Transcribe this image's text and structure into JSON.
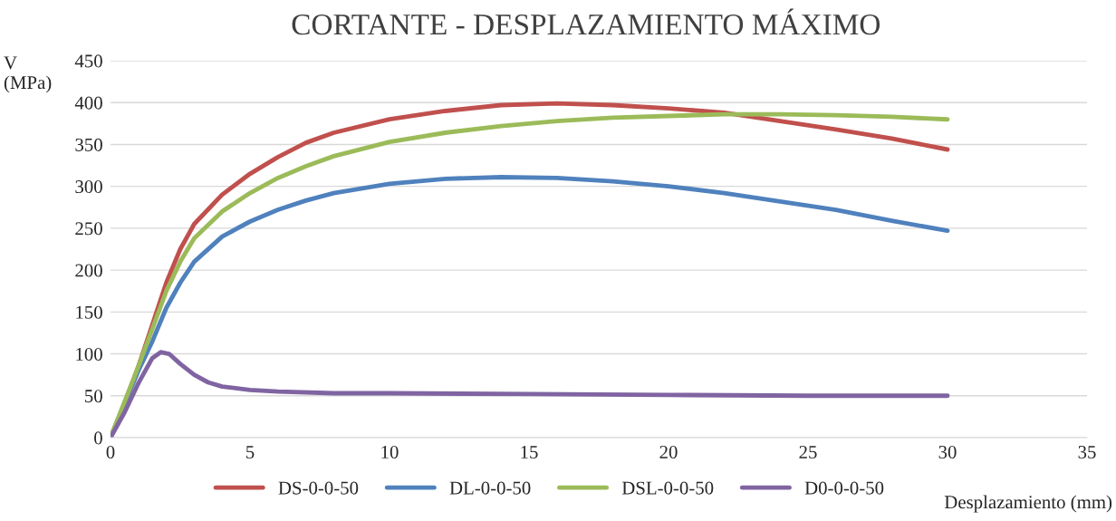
{
  "chart_data": {
    "type": "line",
    "title": "CORTANTE - DESPLAZAMIENTO MÁXIMO",
    "xlabel": "Desplazamiento (mm)",
    "ylabel": "V\n(MPa)",
    "xlim": [
      0,
      35
    ],
    "xticks": [
      0,
      5,
      10,
      15,
      20,
      25,
      30,
      35
    ],
    "ylim": [
      0,
      450
    ],
    "yticks": [
      0,
      50,
      100,
      150,
      200,
      250,
      300,
      350,
      400,
      450
    ],
    "grid": "y",
    "legend": "bottom",
    "marker": "none",
    "line_style": "solid",
    "series": [
      {
        "name": "DS-0-0-50",
        "color": "#c0504d",
        "x": [
          0,
          0.5,
          1,
          1.5,
          2,
          2.5,
          3,
          4,
          5,
          6,
          7,
          8,
          10,
          12,
          14,
          16,
          18,
          20,
          22,
          24,
          26,
          28,
          30
        ],
        "values": [
          0,
          40,
          85,
          135,
          185,
          225,
          255,
          290,
          315,
          335,
          352,
          364,
          380,
          390,
          397,
          399,
          397,
          393,
          388,
          378,
          368,
          357,
          344
        ]
      },
      {
        "name": "DL-0-0-50",
        "color": "#4f81bd",
        "x": [
          0,
          1,
          1.5,
          2,
          2.5,
          3,
          4,
          5,
          6,
          7,
          8,
          10,
          12,
          14,
          16,
          18,
          20,
          22,
          24,
          26,
          28,
          30
        ],
        "values": [
          0,
          80,
          115,
          155,
          185,
          210,
          240,
          258,
          272,
          283,
          292,
          303,
          309,
          311,
          310,
          306,
          300,
          292,
          282,
          272,
          259,
          247
        ]
      },
      {
        "name": "DSL-0-0-50",
        "color": "#9bbb59",
        "x": [
          0,
          1,
          1.5,
          2,
          2.5,
          3,
          4,
          5,
          6,
          7,
          8,
          10,
          12,
          14,
          16,
          18,
          20,
          22,
          24,
          26,
          28,
          30
        ],
        "values": [
          0,
          85,
          130,
          175,
          210,
          238,
          270,
          292,
          310,
          324,
          336,
          353,
          364,
          372,
          378,
          382,
          384,
          386,
          386,
          385,
          383,
          380
        ]
      },
      {
        "name": "D0-0-0-50",
        "color": "#8064a2",
        "x": [
          0,
          0.5,
          1,
          1.5,
          1.8,
          2.1,
          2.5,
          3,
          3.5,
          4,
          5,
          6,
          8,
          10,
          15,
          20,
          25,
          30
        ],
        "values": [
          0,
          30,
          65,
          95,
          102,
          100,
          88,
          75,
          66,
          61,
          57,
          55,
          53,
          53,
          52,
          51,
          50,
          50
        ]
      }
    ]
  }
}
